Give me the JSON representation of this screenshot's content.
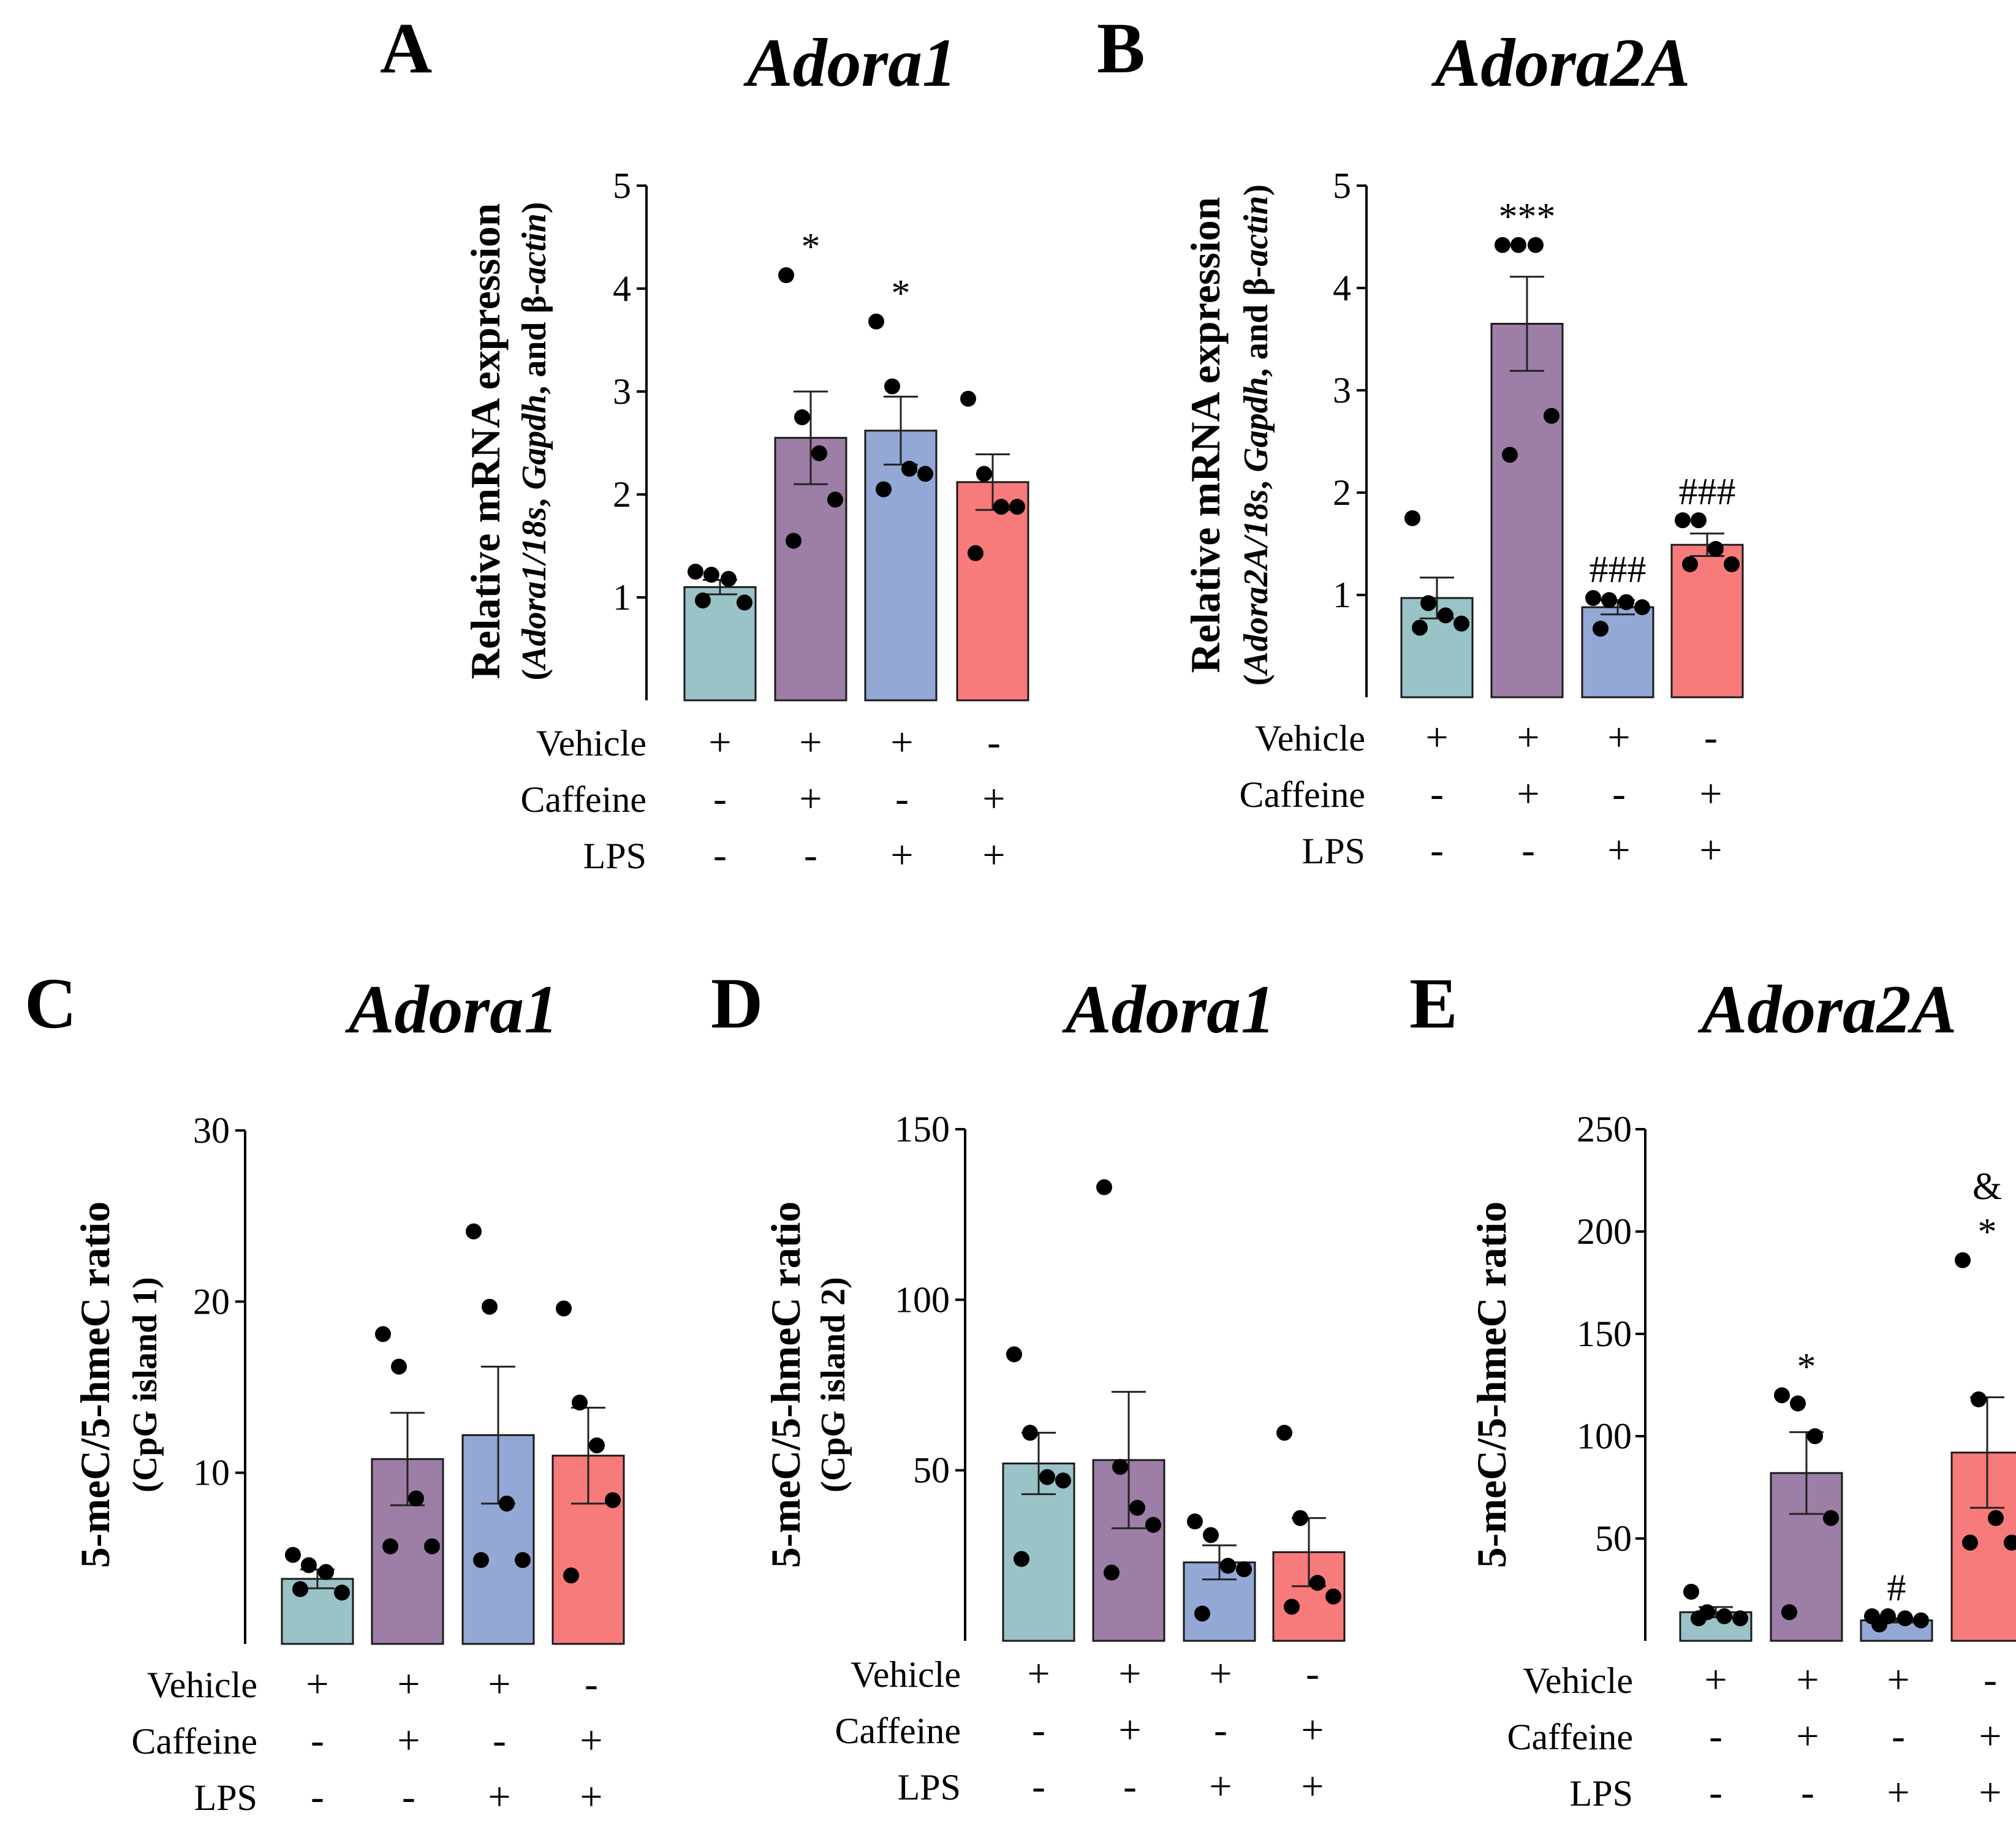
{
  "colors": {
    "vehicle": "#9ac3c8",
    "caffeine": "#9d7ea6",
    "lps": "#93a8d4",
    "caffeine_lps": "#f77b7b"
  },
  "condition_labels": [
    "Vehicle",
    "Caffeine",
    "LPS"
  ],
  "chart_data": [
    {
      "id": "A",
      "type": "bar",
      "panel_label": "A",
      "title": "Adora1",
      "ylabel": "Relative mRNA expression",
      "ylabel_sub": [
        "(",
        "Adora1/18s",
        ", ",
        "Gapdh",
        ", and β-",
        "actin",
        ")"
      ],
      "ylim": [
        0,
        5
      ],
      "yticks": [
        1,
        2,
        3,
        4,
        5
      ],
      "groups": [
        {
          "signs": [
            "+",
            "-",
            "-"
          ],
          "color_key": "vehicle",
          "mean": 1.1,
          "sem": 0.07,
          "points": [
            1.25,
            1.22,
            1.18,
            0.95,
            0.97
          ],
          "sig": ""
        },
        {
          "signs": [
            "+",
            "+",
            "-"
          ],
          "color_key": "caffeine",
          "mean": 2.55,
          "sem": 0.45,
          "points": [
            4.13,
            2.75,
            2.4,
            1.95,
            1.55
          ],
          "sig": "*"
        },
        {
          "signs": [
            "+",
            "-",
            "+"
          ],
          "color_key": "lps",
          "mean": 2.62,
          "sem": 0.33,
          "points": [
            3.68,
            3.05,
            2.25,
            2.2,
            2.05
          ],
          "sig": "*"
        },
        {
          "signs": [
            "-",
            "+",
            "+"
          ],
          "color_key": "caffeine_lps",
          "mean": 2.12,
          "sem": 0.27,
          "points": [
            2.93,
            2.2,
            1.88,
            1.88,
            1.43
          ],
          "sig": ""
        }
      ]
    },
    {
      "id": "B",
      "type": "bar",
      "panel_label": "B",
      "title": "Adora2A",
      "ylabel": "Relative mRNA expression",
      "ylabel_sub": [
        "(",
        "Adora2A/18s",
        ", ",
        "Gapdh",
        ", and β-",
        "actin",
        ")"
      ],
      "ylim": [
        0,
        5
      ],
      "yticks": [
        1,
        2,
        3,
        4,
        5
      ],
      "groups": [
        {
          "signs": [
            "+",
            "-",
            "-"
          ],
          "color_key": "vehicle",
          "mean": 0.97,
          "sem": 0.2,
          "points": [
            1.75,
            0.92,
            0.8,
            0.72,
            0.68
          ],
          "sig": ""
        },
        {
          "signs": [
            "+",
            "+",
            "-"
          ],
          "color_key": "caffeine",
          "mean": 3.65,
          "sem": 0.46,
          "points": [
            4.42,
            4.42,
            4.42,
            2.75,
            2.37
          ],
          "sig": "***"
        },
        {
          "signs": [
            "+",
            "-",
            "+"
          ],
          "color_key": "lps",
          "mean": 0.88,
          "sem": 0.07,
          "points": [
            0.97,
            0.95,
            0.93,
            0.88,
            0.67
          ],
          "sig": "###"
        },
        {
          "signs": [
            "-",
            "+",
            "+"
          ],
          "color_key": "caffeine_lps",
          "mean": 1.49,
          "sem": 0.11,
          "points": [
            1.73,
            1.73,
            1.45,
            1.3,
            1.3
          ],
          "sig": "###"
        }
      ]
    },
    {
      "id": "C",
      "type": "bar",
      "panel_label": "C",
      "title": "Adora1",
      "ylabel": "5-meC/5-hmeC ratio",
      "ylabel2": "(CpG island 1)",
      "ylim": [
        0,
        30
      ],
      "yticks": [
        10,
        20,
        30
      ],
      "groups": [
        {
          "signs": [
            "+",
            "-",
            "-"
          ],
          "color_key": "vehicle",
          "mean": 3.8,
          "sem": 0.55,
          "points": [
            5.2,
            4.6,
            4.2,
            3.0,
            3.2
          ],
          "sig": ""
        },
        {
          "signs": [
            "+",
            "+",
            "-"
          ],
          "color_key": "caffeine",
          "mean": 10.8,
          "sem": 2.7,
          "points": [
            18.1,
            16.2,
            8.5,
            5.7,
            5.7
          ],
          "sig": ""
        },
        {
          "signs": [
            "+",
            "-",
            "+"
          ],
          "color_key": "lps",
          "mean": 12.2,
          "sem": 4.0,
          "points": [
            24.1,
            19.7,
            8.2,
            4.9,
            4.9
          ],
          "sig": ""
        },
        {
          "signs": [
            "-",
            "+",
            "+"
          ],
          "color_key": "caffeine_lps",
          "mean": 11.0,
          "sem": 2.8,
          "points": [
            19.6,
            14.1,
            11.6,
            8.4,
            4.0
          ],
          "sig": ""
        }
      ]
    },
    {
      "id": "D",
      "type": "bar",
      "panel_label": "D",
      "title": "Adora1",
      "ylabel": "5-meC/5-hmeC ratio",
      "ylabel2": "(CpG island 2)",
      "ylim": [
        0,
        150
      ],
      "yticks": [
        50,
        100,
        150
      ],
      "groups": [
        {
          "signs": [
            "+",
            "-",
            "-"
          ],
          "color_key": "vehicle",
          "mean": 52.0,
          "sem": 9.0,
          "points": [
            84.0,
            61.0,
            48.0,
            47.0,
            24.0
          ],
          "sig": ""
        },
        {
          "signs": [
            "+",
            "+",
            "-"
          ],
          "color_key": "caffeine",
          "mean": 53.0,
          "sem": 20.0,
          "points": [
            133.0,
            51.0,
            39.0,
            34.0,
            20.0
          ],
          "sig": ""
        },
        {
          "signs": [
            "+",
            "-",
            "+"
          ],
          "color_key": "lps",
          "mean": 23.0,
          "sem": 5.0,
          "points": [
            35.0,
            31.0,
            22.0,
            21.0,
            8.0
          ],
          "sig": ""
        },
        {
          "signs": [
            "-",
            "+",
            "+"
          ],
          "color_key": "caffeine_lps",
          "mean": 26.0,
          "sem": 10.0,
          "points": [
            61.0,
            36.0,
            17.0,
            13.0,
            10.0
          ],
          "sig": ""
        }
      ]
    },
    {
      "id": "E",
      "type": "bar",
      "panel_label": "E",
      "title": "Adora2A",
      "ylabel": "5-meC/5-hmeC ratio",
      "ylim": [
        0,
        250
      ],
      "yticks": [
        50,
        100,
        150,
        200,
        250
      ],
      "groups": [
        {
          "signs": [
            "+",
            "-",
            "-"
          ],
          "color_key": "vehicle",
          "mean": 14.0,
          "sem": 2.5,
          "points": [
            24.0,
            14.0,
            12.0,
            11.0,
            11.0
          ],
          "sig": ""
        },
        {
          "signs": [
            "+",
            "+",
            "-"
          ],
          "color_key": "caffeine",
          "mean": 82.0,
          "sem": 20.0,
          "points": [
            120.0,
            116.0,
            100.0,
            60.0,
            14.0
          ],
          "sig": "*"
        },
        {
          "signs": [
            "+",
            "-",
            "+"
          ],
          "color_key": "lps",
          "mean": 10.0,
          "sem": 1.0,
          "points": [
            12.0,
            12.0,
            11.0,
            10.0,
            8.0
          ],
          "sig": "#"
        },
        {
          "signs": [
            "-",
            "+",
            "+"
          ],
          "color_key": "caffeine_lps",
          "mean": 92.0,
          "sem": 27.0,
          "points": [
            186.0,
            118.0,
            60.0,
            48.0,
            48.0
          ],
          "sig": "*",
          "sig2": "&"
        }
      ]
    }
  ]
}
